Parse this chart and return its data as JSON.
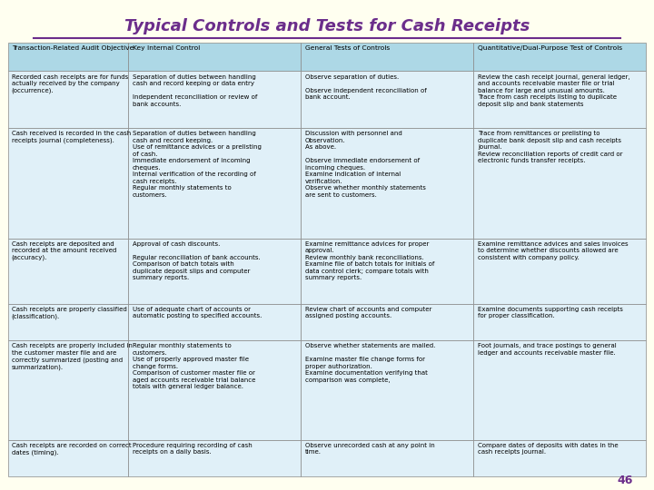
{
  "title": "Typical Controls and Tests for Cash Receipts",
  "background_color": "#FFFFF0",
  "title_color": "#6B2D8B",
  "header_bg": "#ADD8E6",
  "cell_bg": "#E0F0F8",
  "border_color": "#888888",
  "text_color": "#000000",
  "page_number": "46",
  "headers": [
    "Transaction-Related Audit Objective",
    "Key Internal Control",
    "General Tests of Controls",
    "Quantitative/Dual-Purpose Test of Controls"
  ],
  "rows": [
    [
      "Recorded cash receipts are for funds\nactually received by the company\n(occurrence).",
      "Separation of duties between handling\ncash and record keeping or data entry\n\nIndependent reconciliation or review of\nbank accounts.",
      "Observe separation of duties.\n\nObserve independent reconciliation of\nbank account.",
      "Review the cash receipt journal, general ledger,\nand accounts receivable master file or trial\nbalance for large and unusual amounts.\nTrace from cash receipts listing to duplicate\ndeposit slip and bank statements"
    ],
    [
      "Cash received is recorded in the cash\nreceipts journal (completeness).",
      "Separation of duties between handling\ncash and record keeping.\nUse of remittance advices or a prelisting\nof cash.\nImmediate endorsement of incoming\ncheques.\nInternal verification of the recording of\ncash receipts.\nRegular monthly statements to\ncustomers.",
      "Discussion with personnel and\nObservation.\nAs above.\n\nObserve immediate endorsement of\nincoming cheques.\nExamine indication of internal\nverification.\nObserve whether monthly statements\nare sent to customers.",
      "Trace from remittances or prelisting to\nduplicate bank deposit slip and cash receipts\njournal.\nReview reconciliation reports of credit card or\nelectronic funds transfer receipts."
    ],
    [
      "Cash receipts are deposited and\nrecorded at the amount received\n(accuracy).",
      "Approval of cash discounts.\n\nRegular reconciliation of bank accounts.\nComparison of batch totals with\nduplicate deposit slips and computer\nsummary reports.",
      "Examine remittance advices for proper\napproval.\nReview monthly bank reconciliations.\nExamine file of batch totals for initials of\ndata control clerk; compare totals with\nsummary reports.",
      "Examine remittance advices and sales invoices\nto determine whether discounts allowed are\nconsistent with company policy."
    ],
    [
      "Cash receipts are properly classified\n(classification).",
      "Use of adequate chart of accounts or\nautomatic posting to specified accounts.",
      "Review chart of accounts and computer\nassigned posting accounts.",
      "Examine documents supporting cash receipts\nfor proper classification."
    ],
    [
      "Cash receipts are properly included in\nthe customer master file and are\ncorrectly summarized (posting and\nsummarization).",
      "Regular monthly statements to\ncustomers.\nUse of properly approved master file\nchange forms.\nComparison of customer master file or\naged accounts receivable trial balance\ntotals with general ledger balance.",
      "Observe whether statements are mailed.\n\nExamine master file change forms for\nproper authorization.\nExamine documentation verifying that\ncomparison was complete,",
      "Foot journals, and trace postings to general\nledger and accounts receivable master file."
    ],
    [
      "Cash receipts are recorded on correct\ndates (timing).",
      "Procedure requiring recording of cash\nreceipts on a daily basis.",
      "Observe unrecorded cash at any point in\ntime.",
      "Compare dates of deposits with dates in the\ncash receipts journal."
    ]
  ]
}
